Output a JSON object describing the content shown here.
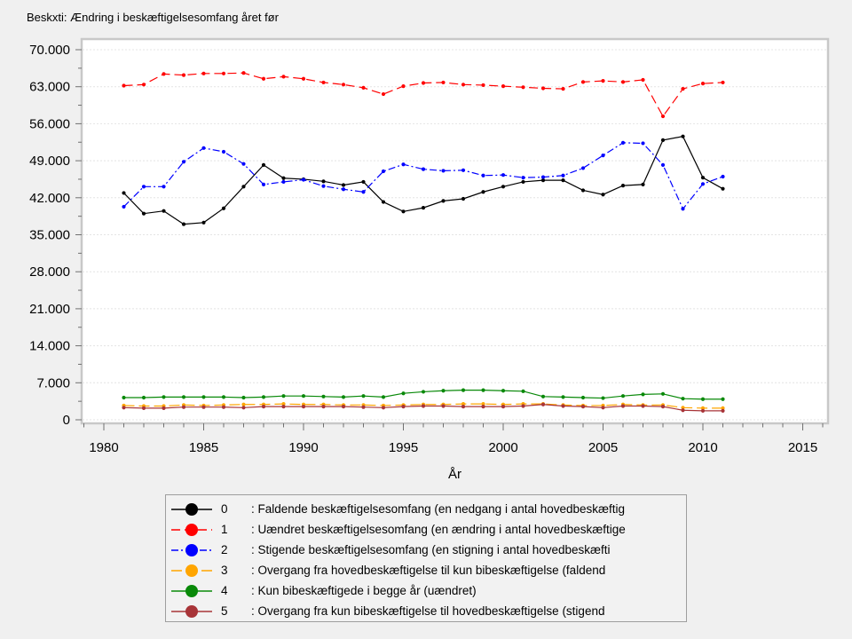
{
  "figure": {
    "title": "Beskxti: Ændring i beskæftigelsesomfang året før"
  },
  "colors": {
    "background": "#f0f0f0",
    "plot_background": "#ffffff",
    "frame": "#c8c8c8",
    "gridline": "#e4e4e4",
    "tick": "#707070",
    "text": "#000000",
    "legend_border": "#9e9e9e",
    "legend_background": "#f2f2f2"
  },
  "chart_data": {
    "type": "line",
    "title": "Beskxti: Ændring i beskæftigelsesomfang året før",
    "xlabel": "År",
    "ylabel": "",
    "grid": "horizontal-dashed",
    "legend_position": "bottom-center",
    "xlim": [
      1978.8,
      2016.4
    ],
    "ylim": [
      0,
      70000
    ],
    "x_ticks": {
      "values": [
        1980,
        1985,
        1990,
        1995,
        2000,
        2005,
        2010,
        2015
      ],
      "labels": [
        "1980",
        "1985",
        "1990",
        "1995",
        "2000",
        "2005",
        "2010",
        "2015"
      ],
      "minor_step": 1
    },
    "y_ticks": {
      "values": [
        0,
        7000,
        14000,
        21000,
        28000,
        35000,
        42000,
        49000,
        56000,
        63000,
        70000
      ],
      "labels": [
        "0",
        "7.000",
        "14.000",
        "21.000",
        "28.000",
        "35.000",
        "42.000",
        "49.000",
        "56.000",
        "63.000",
        "70.000"
      ],
      "minor_step": 3500
    },
    "x": [
      1981,
      1982,
      1983,
      1984,
      1985,
      1986,
      1987,
      1988,
      1989,
      1990,
      1991,
      1992,
      1993,
      1994,
      1995,
      1996,
      1997,
      1998,
      1999,
      2000,
      2001,
      2002,
      2003,
      2004,
      2005,
      2006,
      2007,
      2008,
      2009,
      2010,
      2011
    ],
    "series": [
      {
        "name": "0",
        "legend_label": ": Faldende beskæftigelsesomfang (en nedgang i antal hovedbeskæftig",
        "color": "#000000",
        "line_style": "solid",
        "marker": "circle",
        "values": [
          42900,
          39000,
          39500,
          37000,
          37300,
          40000,
          44100,
          48200,
          45700,
          45500,
          45100,
          44400,
          45000,
          41200,
          39400,
          40100,
          41400,
          41800,
          43100,
          44100,
          45000,
          45300,
          45300,
          43400,
          42600,
          44300,
          44500,
          52900,
          53600,
          45800,
          43700
        ]
      },
      {
        "name": "1",
        "legend_label": ": Uændret beskæftigelsesomfang (en ændring i antal hovedbeskæftige",
        "color": "#ff0000",
        "line_style": "dashed",
        "marker": "circle",
        "values": [
          63200,
          63400,
          65400,
          65200,
          65500,
          65500,
          65600,
          64500,
          64900,
          64500,
          63800,
          63400,
          62800,
          61600,
          63100,
          63700,
          63800,
          63400,
          63300,
          63100,
          62900,
          62700,
          62600,
          63900,
          64100,
          63900,
          64300,
          57400,
          62600,
          63600,
          63800
        ]
      },
      {
        "name": "2",
        "legend_label": ": Stigende beskæftigelsesomfang (en stigning i antal hovedbeskæfti",
        "color": "#0000ff",
        "line_style": "dash-dot",
        "marker": "circle",
        "values": [
          40300,
          44100,
          44100,
          48800,
          51400,
          50700,
          48400,
          44500,
          45000,
          45400,
          44200,
          43600,
          43100,
          47000,
          48300,
          47400,
          47100,
          47200,
          46200,
          46300,
          45800,
          45900,
          46200,
          47600,
          50000,
          52400,
          52300,
          48200,
          39900,
          44600,
          46000
        ]
      },
      {
        "name": "3",
        "legend_label": ": Overgang fra hovedbeskæftigelse til kun bibeskæftigelse (faldend",
        "color": "#ffa500",
        "line_style": "long-dash",
        "marker": "circle",
        "values": [
          2700,
          2600,
          2600,
          2800,
          2700,
          2800,
          2900,
          2900,
          3000,
          2900,
          2900,
          2800,
          2800,
          2700,
          2800,
          2900,
          2900,
          3000,
          3000,
          2900,
          3000,
          3000,
          2800,
          2700,
          2700,
          2900,
          2800,
          2800,
          2300,
          2200,
          2200
        ]
      },
      {
        "name": "4",
        "legend_label": ": Kun bibeskæftigede i begge år (uændret)",
        "color": "#098909",
        "line_style": "solid",
        "marker": "circle",
        "values": [
          4200,
          4200,
          4300,
          4300,
          4300,
          4300,
          4200,
          4300,
          4500,
          4500,
          4400,
          4300,
          4500,
          4300,
          5000,
          5300,
          5500,
          5600,
          5600,
          5500,
          5400,
          4400,
          4300,
          4200,
          4100,
          4500,
          4800,
          4900,
          4000,
          3900,
          3900
        ]
      },
      {
        "name": "5",
        "legend_label": ": Overgang fra kun bibeskæftigelse til hovedbeskæftigelse (stigend",
        "color": "#a83438",
        "line_style": "solid",
        "marker": "circle",
        "values": [
          2300,
          2200,
          2200,
          2400,
          2400,
          2400,
          2300,
          2500,
          2500,
          2500,
          2500,
          2500,
          2400,
          2300,
          2500,
          2600,
          2600,
          2500,
          2500,
          2500,
          2600,
          2900,
          2600,
          2500,
          2300,
          2600,
          2600,
          2500,
          1800,
          1700,
          1700
        ]
      }
    ]
  }
}
